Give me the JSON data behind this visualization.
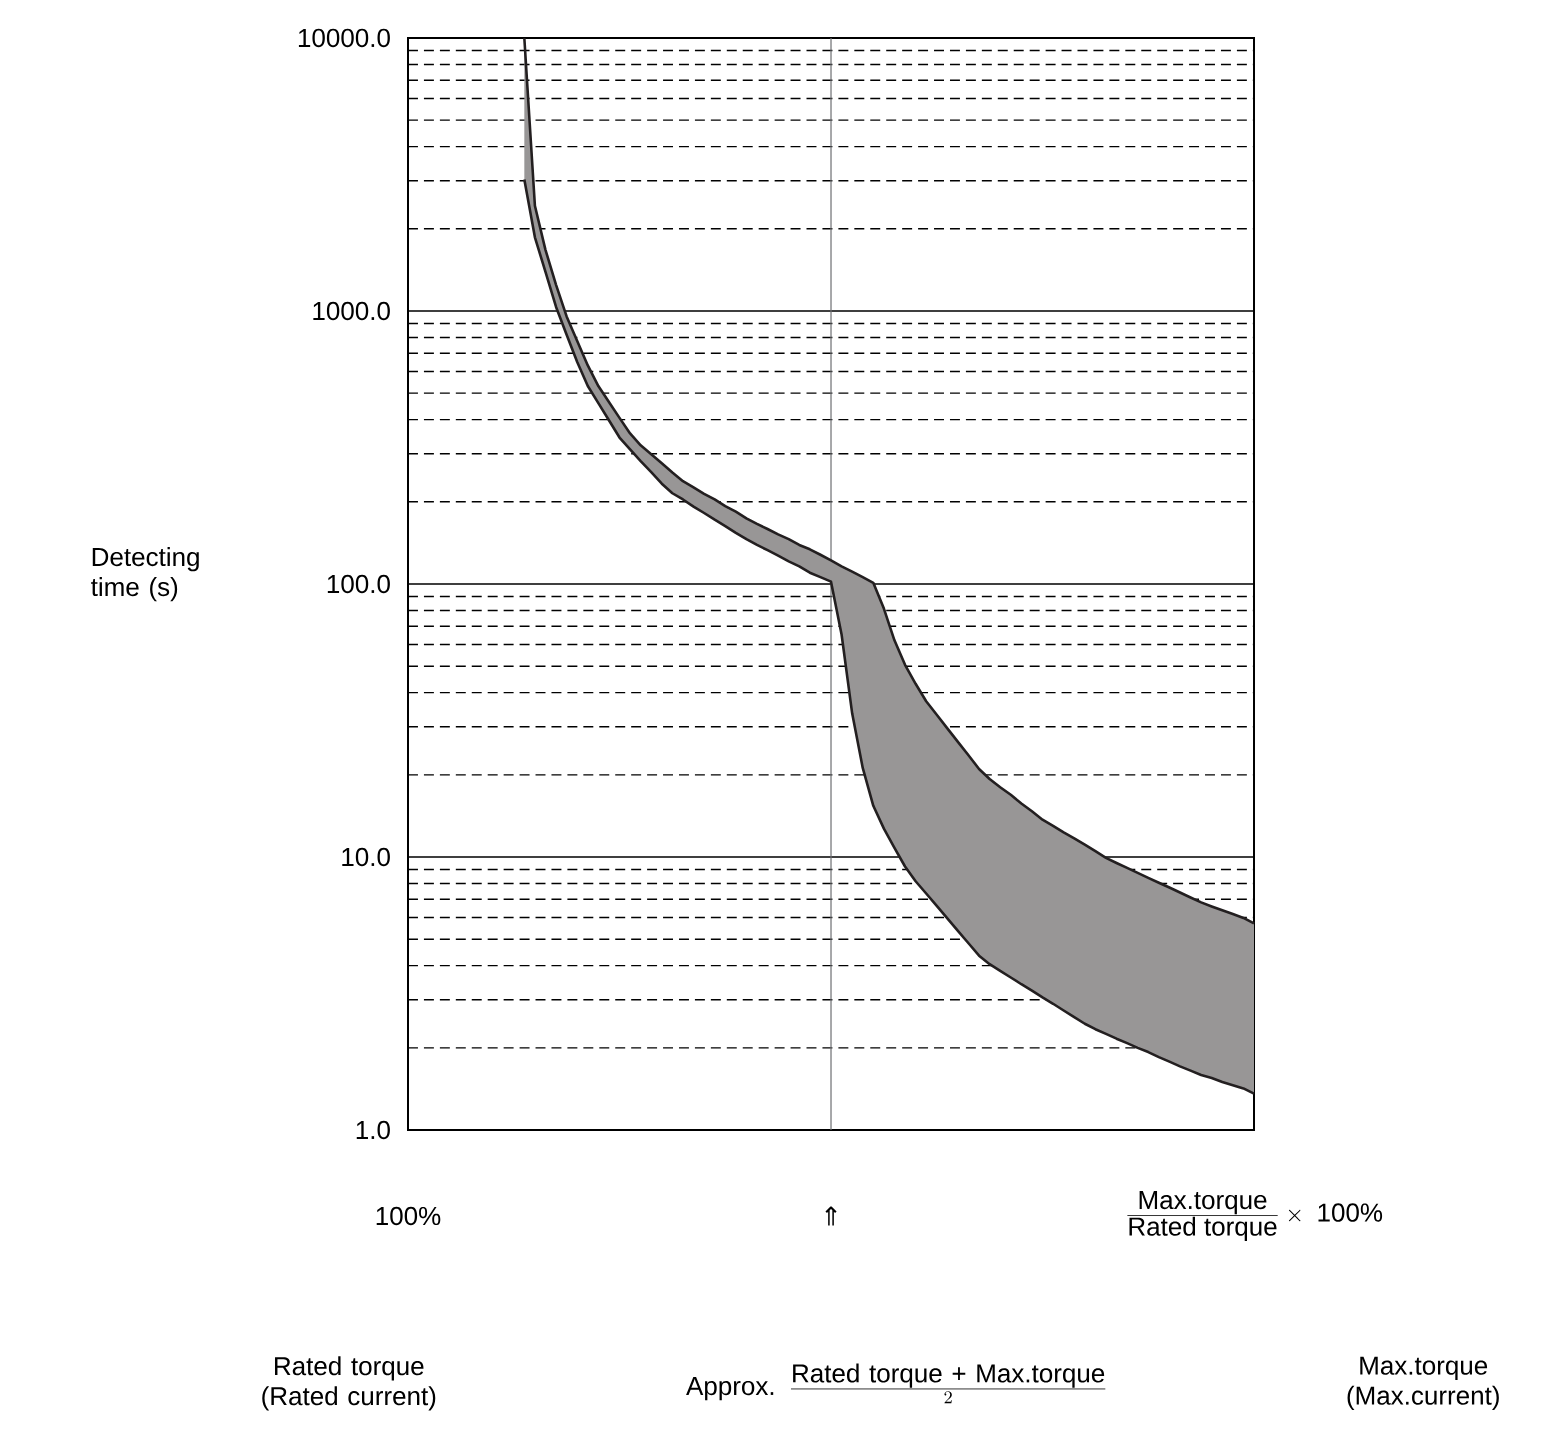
{
  "chart_data": {
    "type": "line",
    "ylabel": "Detecting time (s)",
    "categories": [
      "100%",
      null,
      null,
      null,
      null,
      null,
      null,
      null,
      null,
      null,
      null,
      null,
      null,
      null,
      null,
      null,
      null,
      null,
      null,
      null,
      null,
      null,
      null,
      null,
      null,
      null,
      null,
      null,
      null,
      null,
      null,
      null,
      null,
      null,
      null,
      null,
      null,
      null,
      null,
      null,
      "⇑",
      null,
      null,
      null,
      null,
      null,
      null,
      null,
      null,
      null,
      null,
      null,
      null,
      null,
      null,
      null,
      null,
      null,
      null,
      null,
      null,
      null,
      null,
      null,
      null,
      null,
      null,
      null,
      null,
      null,
      null,
      null,
      null,
      null,
      null,
      null,
      null,
      null,
      null,
      null,
      "\\frac{\\mbox{Max.torque}}{\\mbox{Rated torque}}\\times\\mbox{ 100\\%}"
    ],
    "ylim": [
      1,
      10000
    ],
    "yticks": [
      {
        "value": 1,
        "label": "1.0"
      },
      {
        "value": 10,
        "label": "10.0"
      },
      {
        "value": 100,
        "label": "100.0"
      },
      {
        "value": 1000,
        "label": "1000.0"
      },
      {
        "value": 10000,
        "label": "10000.0"
      }
    ],
    "log": "y",
    "grid": "y",
    "ref_lines": [
      {
        "axis": "x",
        "value": "⇑",
        "color": "#6d6e71"
      }
    ],
    "series": [
      {
        "color": "#231f20",
        "values": [
          null,
          null,
          null,
          null,
          null,
          null,
          null,
          null,
          null,
          null,
          null,
          10000,
          2430,
          1675,
          1247,
          955,
          776,
          632,
          531,
          464,
          406,
          356,
          322,
          299,
          277,
          256,
          238,
          226,
          214,
          204,
          193,
          184,
          174,
          166,
          159,
          152,
          146,
          139,
          134,
          128,
          122,
          116,
          111,
          106,
          101,
          81.3,
          62.2,
          50.6,
          43.1,
          37.2,
          33.2,
          29.6,
          26.4,
          23.6,
          21.0,
          19.3,
          18.0,
          16.9,
          15.7,
          14.7,
          13.7,
          13.0,
          12.3,
          11.7,
          11.1,
          10.5,
          9.93,
          9.51,
          9.12,
          8.75,
          8.39,
          8.05,
          7.73,
          7.41,
          7.11,
          6.82,
          6.59,
          6.38,
          6.18,
          5.98,
          5.71
        ],
        "upper": [
          null,
          null,
          null,
          null,
          null,
          null,
          null,
          null,
          null,
          null,
          null,
          10000,
          2430,
          1675,
          1247,
          955,
          776,
          632,
          531,
          464,
          406,
          356,
          322,
          299,
          277,
          256,
          238,
          226,
          214,
          204,
          193,
          184,
          174,
          166,
          159,
          152,
          146,
          139,
          134,
          128,
          122,
          116,
          111,
          106,
          101,
          81.3,
          62.2,
          50.6,
          43.1,
          37.2,
          33.2,
          29.6,
          26.4,
          23.6,
          21.0,
          19.3,
          18.0,
          16.9,
          15.7,
          14.7,
          13.7,
          13.0,
          12.3,
          11.7,
          11.1,
          10.5,
          9.93,
          9.51,
          9.12,
          8.75,
          8.39,
          8.05,
          7.73,
          7.41,
          7.11,
          6.82,
          6.59,
          6.38,
          6.18,
          5.98,
          5.71
        ],
        "lower": [
          null,
          null,
          null,
          null,
          null,
          null,
          null,
          null,
          null,
          null,
          null,
          3030,
          1862,
          1390,
          1035,
          819,
          650,
          531,
          460,
          398,
          344,
          311,
          282,
          257,
          233,
          215,
          204,
          192,
          182,
          172,
          163,
          154,
          146,
          139,
          133,
          127,
          121,
          116,
          110,
          106,
          102,
          65.3,
          33.6,
          21.2,
          15.4,
          12.7,
          10.8,
          9.23,
          8.15,
          7.35,
          6.62,
          5.96,
          5.36,
          4.83,
          4.35,
          4.05,
          3.83,
          3.62,
          3.42,
          3.24,
          3.06,
          2.9,
          2.74,
          2.59,
          2.45,
          2.34,
          2.25,
          2.16,
          2.08,
          2.0,
          1.93,
          1.85,
          1.78,
          1.71,
          1.65,
          1.59,
          1.55,
          1.5,
          1.46,
          1.42,
          1.36
        ]
      },
      {
        "color": "#231f20",
        "values": [
          null,
          null,
          null,
          null,
          null,
          null,
          null,
          null,
          null,
          null,
          null,
          3030,
          1862,
          1390,
          1035,
          819,
          650,
          531,
          460,
          398,
          344,
          311,
          282,
          257,
          233,
          215,
          204,
          192,
          182,
          172,
          163,
          154,
          146,
          139,
          133,
          127,
          121,
          116,
          110,
          106,
          102,
          65.3,
          33.6,
          21.2,
          15.4,
          12.7,
          10.8,
          9.23,
          8.15,
          7.35,
          6.62,
          5.96,
          5.36,
          4.83,
          4.35,
          4.05,
          3.83,
          3.62,
          3.42,
          3.24,
          3.06,
          2.9,
          2.74,
          2.59,
          2.45,
          2.34,
          2.25,
          2.16,
          2.08,
          2.0,
          1.93,
          1.85,
          1.78,
          1.71,
          1.65,
          1.59,
          1.55,
          1.5,
          1.46,
          1.42,
          1.36
        ]
      }
    ],
    "annotations": [
      "Rated torque (Rated current)",
      "\\mbox{Approx. }\\frac{\\mbox{Rated torque + Max.torque}}{2}",
      "Max.torque (Max.current)"
    ]
  }
}
